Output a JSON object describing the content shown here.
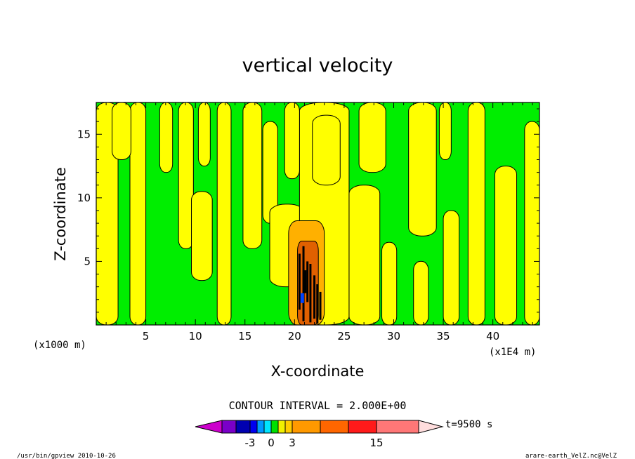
{
  "chart_data": {
    "type": "heatmap",
    "title": "vertical velocity",
    "xlabel": "X-coordinate",
    "ylabel": "Z-coordinate",
    "x_unit_left": "(x1000 m)",
    "x_unit_right": "(x1E4 m)",
    "xlim": [
      0,
      44.7
    ],
    "ylim": [
      0,
      17.5
    ],
    "x_ticks": [
      5,
      10,
      15,
      20,
      25,
      30,
      35,
      40
    ],
    "y_ticks": [
      5,
      10,
      15
    ],
    "contour_interval_text": "CONTOUR INTERVAL = 2.000E+00",
    "time_label": "t=9500 s",
    "colorbar_tick_labels": [
      "-3",
      "0",
      "3",
      "15"
    ],
    "colorbar_colors": [
      "#cc00cc",
      "#7a00c8",
      "#0000b0",
      "#0000f0",
      "#0099ff",
      "#00e5ff",
      "#00e000",
      "#f0f000",
      "#ffcc00",
      "#ff9900",
      "#ff6600",
      "#ff1a1a",
      "#ff7777",
      "#ffbbbb",
      "#ffdddd"
    ],
    "field_colors": {
      "negative": "#00ee00",
      "positive": "#ffff00",
      "moderate": "#ffb000",
      "strong": "#e06000",
      "updraft": "#000000"
    }
  },
  "footer": {
    "left": "/usr/bin/gpview   2010-10-26",
    "right": "arare-earth_VelZ.nc@VelZ"
  }
}
